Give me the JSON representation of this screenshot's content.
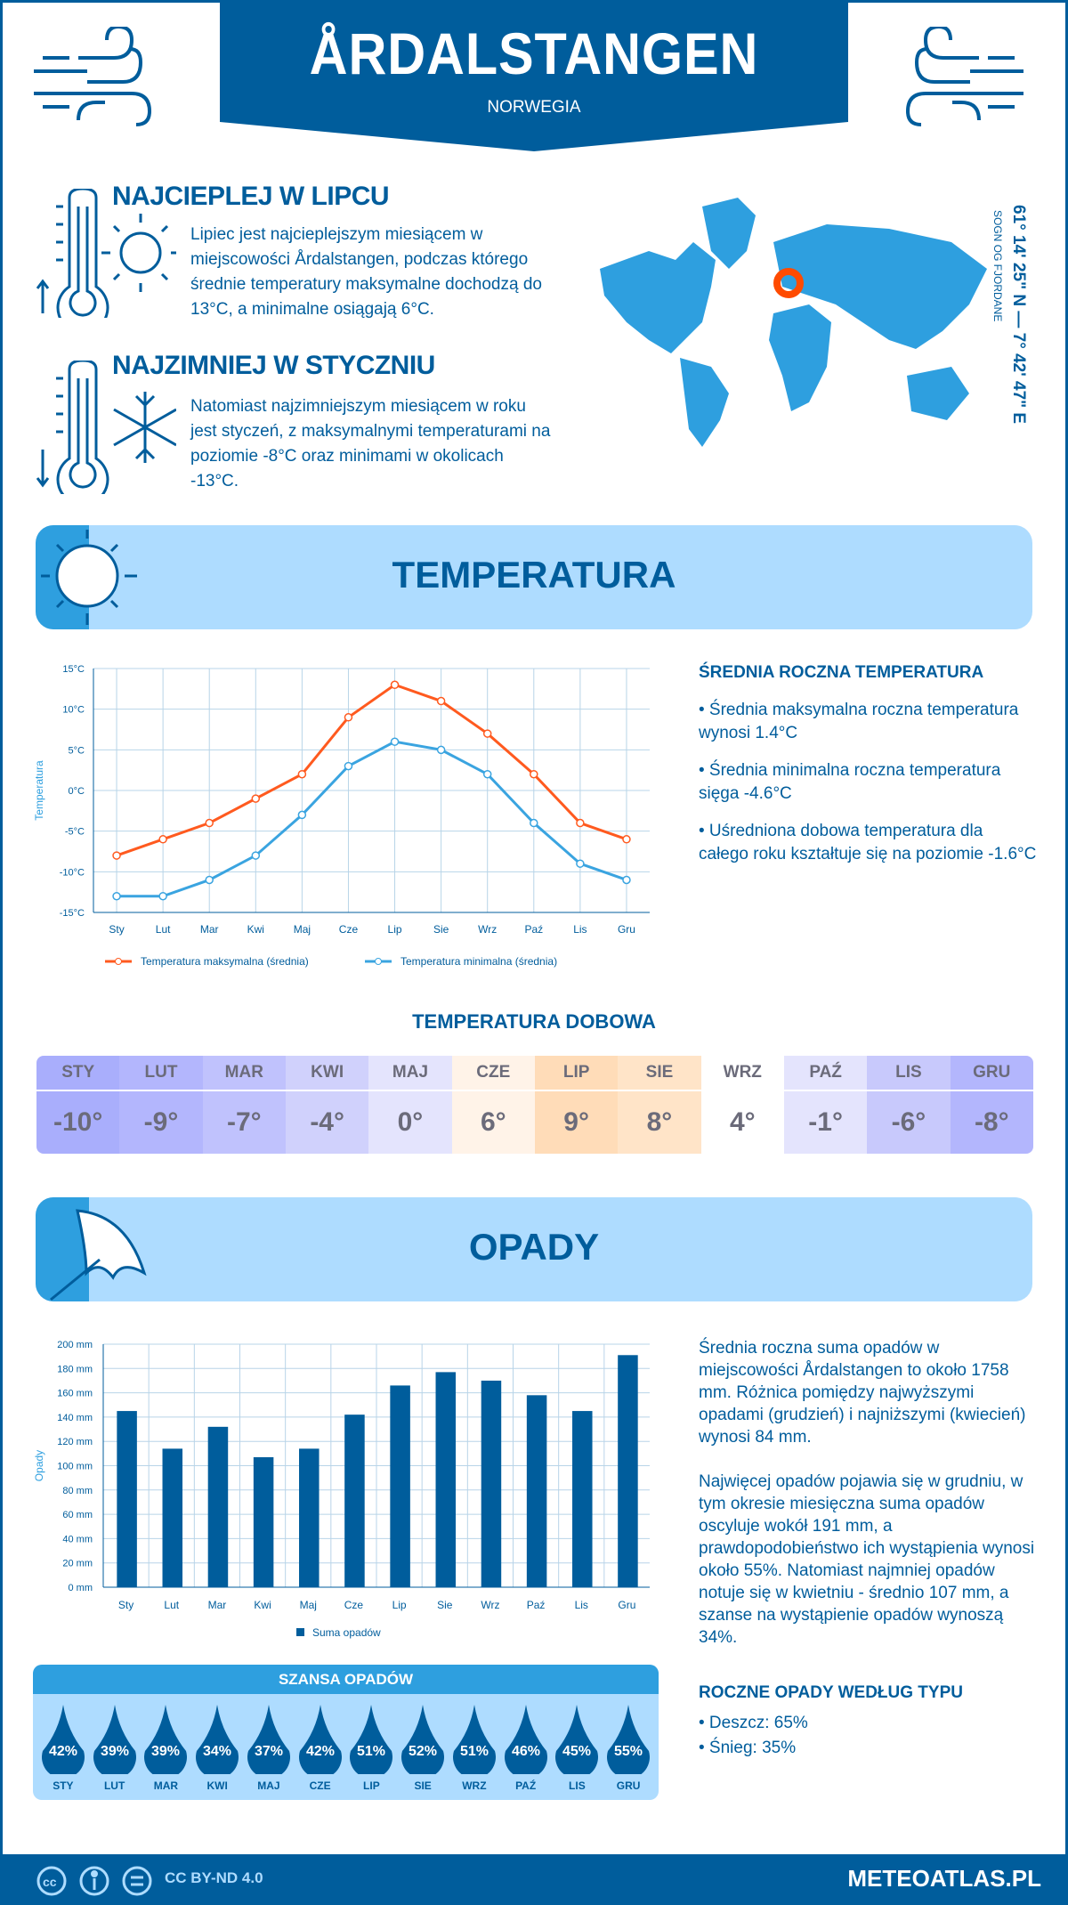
{
  "header": {
    "city": "ÅRDALSTANGEN",
    "country": "NORWEGIA",
    "coords": "61° 14' 25\" N — 7° 42' 47\" E",
    "region": "SOGN OG FJORDANE"
  },
  "warm": {
    "title": "NAJCIEPLEJ W LIPCU",
    "text": "Lipiec jest najcieplejszym miesiącem w miejscowości Årdalstangen, podczas którego średnie temperatury maksymalne dochodzą do 13°C, a minimalne osiągają 6°C."
  },
  "cold": {
    "title": "NAJZIMNIEJ W STYCZNIU",
    "text": "Natomiast najzimniejszym miesiącem w roku jest styczeń, z maksymalnymi temperaturami na poziomie -8°C oraz minimami w okolicach -13°C."
  },
  "temp_section": {
    "title": "TEMPERATURA",
    "side_title": "ŚREDNIA ROCZNA TEMPERATURA",
    "bullets": [
      "• Średnia maksymalna roczna temperatura wynosi 1.4°C",
      "• Średnia minimalna roczna temperatura sięga -4.6°C",
      "• Uśredniona dobowa temperatura dla całego roku kształtuje się na poziomie -1.6°C"
    ]
  },
  "daily": {
    "title": "TEMPERATURA DOBOWA",
    "months": [
      "STY",
      "LUT",
      "MAR",
      "KWI",
      "MAJ",
      "CZE",
      "LIP",
      "SIE",
      "WRZ",
      "PAŹ",
      "LIS",
      "GRU"
    ],
    "values": [
      "-10°",
      "-9°",
      "-7°",
      "-4°",
      "0°",
      "6°",
      "9°",
      "8°",
      "4°",
      "-1°",
      "-6°",
      "-8°"
    ],
    "colors": [
      "#a9aefc",
      "#b3b6fd",
      "#c0c2fd",
      "#d0d1fc",
      "#e4e4fd",
      "#fff3e8",
      "#ffdcb8",
      "#ffe4c8",
      "#ffffff",
      "#e4e4fd",
      "#c8c9fc",
      "#b3b6fd"
    ]
  },
  "precip_section": {
    "title": "OPADY",
    "text1": "Średnia roczna suma opadów w miejscowości Årdalstangen to około 1758 mm. Różnica pomiędzy najwyższymi opadami (grudzień) i najniższymi (kwiecień) wynosi 84 mm.",
    "text2": "Najwięcej opadów pojawia się w grudniu, w tym okresie miesięczna suma opadów oscyluje wokół 191 mm, a prawdopodobieństwo ich wystąpienia wynosi około 55%. Natomiast najmniej opadów notuje się w kwietniu - średnio 107 mm, a szanse na wystąpienie opadów wynoszą 34%.",
    "type_title": "ROCZNE OPADY WEDŁUG TYPU",
    "types": [
      "• Deszcz: 65%",
      "• Śnieg: 35%"
    ]
  },
  "chance": {
    "title": "SZANSA OPADÓW",
    "months": [
      "STY",
      "LUT",
      "MAR",
      "KWI",
      "MAJ",
      "CZE",
      "LIP",
      "SIE",
      "WRZ",
      "PAŹ",
      "LIS",
      "GRU"
    ],
    "values": [
      "42%",
      "39%",
      "39%",
      "34%",
      "37%",
      "42%",
      "51%",
      "52%",
      "51%",
      "46%",
      "45%",
      "55%"
    ]
  },
  "footer": {
    "license": "CC BY-ND 4.0",
    "brand": "METEOATLAS.PL"
  },
  "colors": {
    "primary": "#005d9c",
    "light": "#aedcff",
    "accent": "#2e9fdf",
    "max_line": "#ff5a1f",
    "min_line": "#3aa4e0",
    "marker": "#ff4b00"
  },
  "chart_data": [
    {
      "type": "line",
      "categories": [
        "Sty",
        "Lut",
        "Mar",
        "Kwi",
        "Maj",
        "Cze",
        "Lip",
        "Sie",
        "Wrz",
        "Paź",
        "Lis",
        "Gru"
      ],
      "ylabel": "Temperatura",
      "ylim": [
        -15,
        15
      ],
      "yticks": [
        "-15°C",
        "-10°C",
        "-5°C",
        "0°C",
        "5°C",
        "10°C",
        "15°C"
      ],
      "grid": true,
      "legend": "bottom",
      "series": [
        {
          "name": "Temperatura maksymalna (średnia)",
          "values": [
            -8,
            -6,
            -4,
            -1,
            2,
            9,
            13,
            11,
            7,
            2,
            -4,
            -6
          ]
        },
        {
          "name": "Temperatura minimalna (średnia)",
          "values": [
            -13,
            -13,
            -11,
            -8,
            -3,
            3,
            6,
            5,
            2,
            -4,
            -9,
            -11
          ]
        }
      ]
    },
    {
      "type": "bar",
      "categories": [
        "Sty",
        "Lut",
        "Mar",
        "Kwi",
        "Maj",
        "Cze",
        "Lip",
        "Sie",
        "Wrz",
        "Paź",
        "Lis",
        "Gru"
      ],
      "ylabel": "Opady",
      "ylim": [
        0,
        200
      ],
      "yticks": [
        "0 mm",
        "20 mm",
        "40 mm",
        "60 mm",
        "80 mm",
        "100 mm",
        "120 mm",
        "140 mm",
        "160 mm",
        "180 mm",
        "200 mm"
      ],
      "grid": true,
      "legend": "bottom",
      "series": [
        {
          "name": "Suma opadów",
          "values": [
            145,
            114,
            132,
            107,
            114,
            142,
            166,
            177,
            170,
            158,
            145,
            191
          ]
        }
      ]
    }
  ]
}
